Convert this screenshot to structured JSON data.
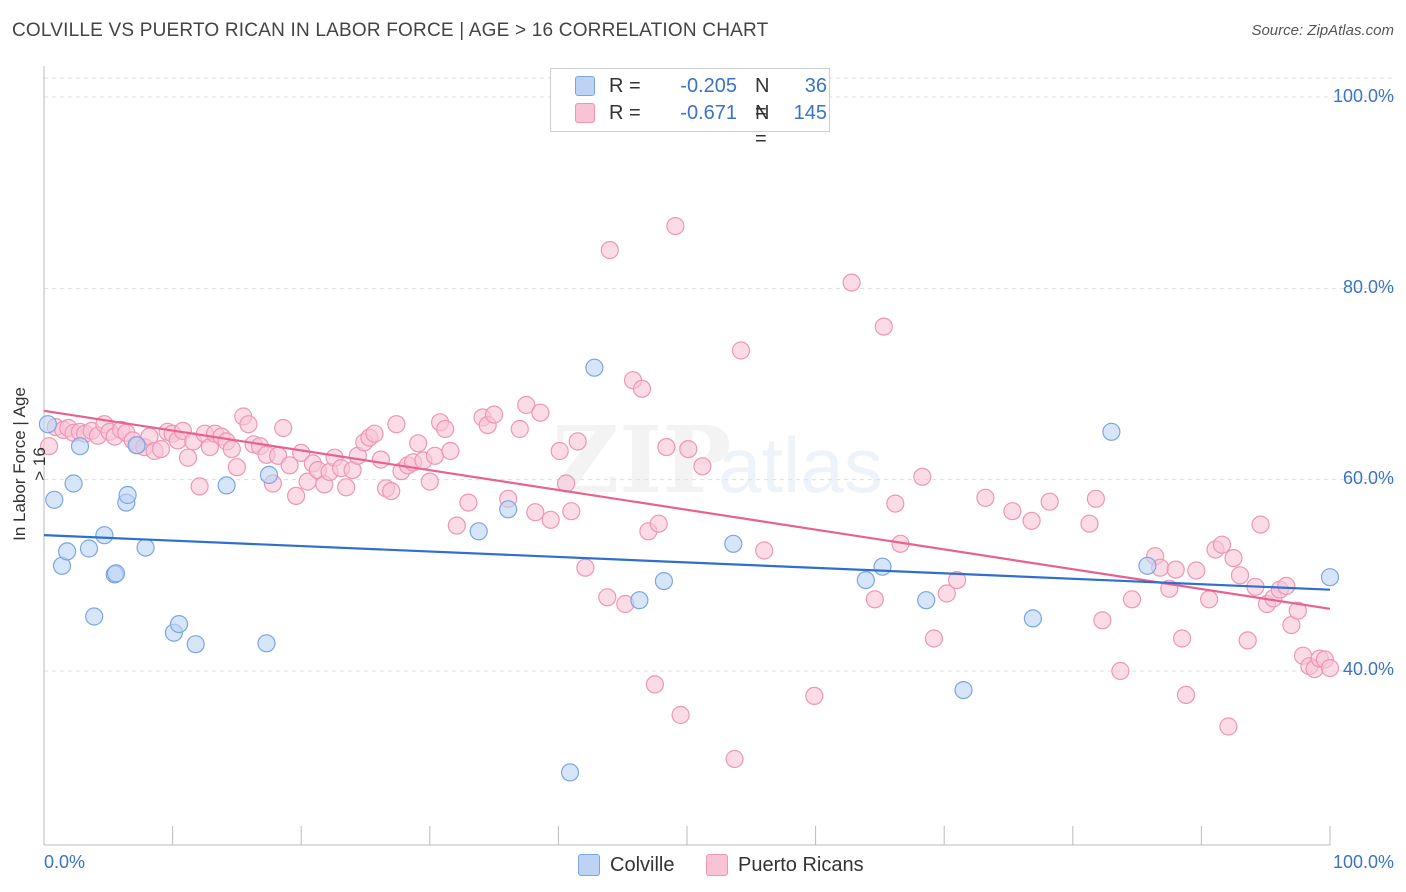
{
  "header": {
    "title": "COLVILLE VS PUERTO RICAN IN LABOR FORCE | AGE > 16 CORRELATION CHART",
    "source": "Source: ZipAtlas.com"
  },
  "legend": {
    "colville": {
      "r_label": "R =",
      "r_value": "-0.205",
      "n_label": "N =",
      "n_value": "36"
    },
    "puerto": {
      "r_label": "R =",
      "r_value": "-0.671",
      "n_label": "N =",
      "n_value": "145"
    }
  },
  "bottom_legend": {
    "colville": "Colville",
    "puerto": "Puerto Ricans"
  },
  "colors": {
    "colville_fill": "#bcd3f5",
    "colville_stroke": "#7aa6e6",
    "colville_line": "#2f6fcf",
    "puerto_fill": "#f8c4d5",
    "puerto_stroke": "#ee96b3",
    "puerto_line": "#e8628f",
    "axis_text": "#3a73c8",
    "grid": "#dddddd"
  },
  "chart_data": {
    "type": "scatter",
    "title": "COLVILLE VS PUERTO RICAN IN LABOR FORCE | AGE > 16 CORRELATION CHART",
    "xlabel": "",
    "ylabel": "In Labor Force | Age > 16",
    "x_tick_labels": [
      "0.0%",
      "100.0%"
    ],
    "y_tick_labels": [
      "100.0%",
      "80.0%",
      "60.0%",
      "40.0%"
    ],
    "xlim": [
      0,
      100
    ],
    "ylim": [
      21,
      102
    ],
    "grid": true,
    "legend_position": "top-center",
    "series": [
      {
        "name": "Colville",
        "r": -0.205,
        "n": 36,
        "trend": {
          "x": [
            0,
            100
          ],
          "y": [
            54.2,
            48.5
          ]
        },
        "points": [
          [
            0.3,
            65.8
          ],
          [
            0.8,
            57.9
          ],
          [
            1.4,
            51.0
          ],
          [
            1.8,
            52.5
          ],
          [
            2.3,
            59.6
          ],
          [
            2.8,
            63.5
          ],
          [
            3.5,
            52.8
          ],
          [
            3.9,
            45.7
          ],
          [
            4.7,
            54.2
          ],
          [
            5.5,
            50.1
          ],
          [
            5.6,
            50.2
          ],
          [
            6.4,
            57.6
          ],
          [
            6.5,
            58.4
          ],
          [
            7.2,
            63.6
          ],
          [
            7.9,
            52.9
          ],
          [
            10.1,
            44.0
          ],
          [
            10.5,
            44.9
          ],
          [
            11.8,
            42.8
          ],
          [
            14.2,
            59.4
          ],
          [
            17.3,
            42.9
          ],
          [
            17.5,
            60.5
          ],
          [
            33.8,
            54.6
          ],
          [
            36.1,
            56.9
          ],
          [
            40.9,
            29.4
          ],
          [
            42.8,
            71.7
          ],
          [
            46.3,
            47.4
          ],
          [
            48.2,
            49.4
          ],
          [
            53.6,
            53.3
          ],
          [
            63.9,
            49.5
          ],
          [
            65.2,
            50.9
          ],
          [
            68.6,
            47.4
          ],
          [
            71.5,
            38.0
          ],
          [
            76.9,
            45.5
          ],
          [
            83.0,
            65.0
          ],
          [
            85.8,
            51.0
          ],
          [
            100.0,
            49.8
          ]
        ]
      },
      {
        "name": "Puerto Ricans",
        "r": -0.671,
        "n": 145,
        "trend": {
          "x": [
            0,
            100
          ],
          "y": [
            67.2,
            46.5
          ]
        },
        "points": [
          [
            0.4,
            63.5
          ],
          [
            0.9,
            65.5
          ],
          [
            1.5,
            65.2
          ],
          [
            1.9,
            65.4
          ],
          [
            2.3,
            64.9
          ],
          [
            2.8,
            65.0
          ],
          [
            3.2,
            64.8
          ],
          [
            3.7,
            65.1
          ],
          [
            4.2,
            64.6
          ],
          [
            4.7,
            65.8
          ],
          [
            5.1,
            65.0
          ],
          [
            5.5,
            64.5
          ],
          [
            6.0,
            65.2
          ],
          [
            6.4,
            64.9
          ],
          [
            6.9,
            64.1
          ],
          [
            7.3,
            63.6
          ],
          [
            7.8,
            63.4
          ],
          [
            8.2,
            64.5
          ],
          [
            8.6,
            63.0
          ],
          [
            9.1,
            63.2
          ],
          [
            9.6,
            65.0
          ],
          [
            10.0,
            64.8
          ],
          [
            10.4,
            64.1
          ],
          [
            10.8,
            65.1
          ],
          [
            11.2,
            62.3
          ],
          [
            11.6,
            64.0
          ],
          [
            12.1,
            59.3
          ],
          [
            12.5,
            64.8
          ],
          [
            12.9,
            63.4
          ],
          [
            13.3,
            64.8
          ],
          [
            13.8,
            64.5
          ],
          [
            14.2,
            64.0
          ],
          [
            14.6,
            63.2
          ],
          [
            15.0,
            61.3
          ],
          [
            15.5,
            66.6
          ],
          [
            15.9,
            65.8
          ],
          [
            16.3,
            63.7
          ],
          [
            16.8,
            63.5
          ],
          [
            17.3,
            62.6
          ],
          [
            17.8,
            59.6
          ],
          [
            18.2,
            62.5
          ],
          [
            18.6,
            65.4
          ],
          [
            19.1,
            61.5
          ],
          [
            19.6,
            58.3
          ],
          [
            20.0,
            62.8
          ],
          [
            20.5,
            59.8
          ],
          [
            20.9,
            61.7
          ],
          [
            21.3,
            61.0
          ],
          [
            21.8,
            59.5
          ],
          [
            22.2,
            60.8
          ],
          [
            22.6,
            62.3
          ],
          [
            23.1,
            61.2
          ],
          [
            23.5,
            59.2
          ],
          [
            24.0,
            61.0
          ],
          [
            24.4,
            62.5
          ],
          [
            24.9,
            63.9
          ],
          [
            25.3,
            64.4
          ],
          [
            25.7,
            64.8
          ],
          [
            26.2,
            62.1
          ],
          [
            26.6,
            59.1
          ],
          [
            27.0,
            58.8
          ],
          [
            27.4,
            65.8
          ],
          [
            27.8,
            60.9
          ],
          [
            28.3,
            61.5
          ],
          [
            28.7,
            61.8
          ],
          [
            29.1,
            63.8
          ],
          [
            29.5,
            62.0
          ],
          [
            30.0,
            59.8
          ],
          [
            30.4,
            62.5
          ],
          [
            30.8,
            66.0
          ],
          [
            31.2,
            65.3
          ],
          [
            31.6,
            63.0
          ],
          [
            32.1,
            55.2
          ],
          [
            33.0,
            57.6
          ],
          [
            34.1,
            66.5
          ],
          [
            34.5,
            65.7
          ],
          [
            35.0,
            66.8
          ],
          [
            36.1,
            58.0
          ],
          [
            37.0,
            65.3
          ],
          [
            37.5,
            67.8
          ],
          [
            38.2,
            56.6
          ],
          [
            38.6,
            67.0
          ],
          [
            39.4,
            55.8
          ],
          [
            40.1,
            63.0
          ],
          [
            40.6,
            59.6
          ],
          [
            41.0,
            56.7
          ],
          [
            41.5,
            64.0
          ],
          [
            42.1,
            50.8
          ],
          [
            43.8,
            47.7
          ],
          [
            44.0,
            84.0
          ],
          [
            45.2,
            47.0
          ],
          [
            45.8,
            70.4
          ],
          [
            46.5,
            69.5
          ],
          [
            47.0,
            54.6
          ],
          [
            47.5,
            38.6
          ],
          [
            47.8,
            55.4
          ],
          [
            48.4,
            63.4
          ],
          [
            49.1,
            86.5
          ],
          [
            49.5,
            35.4
          ],
          [
            50.1,
            63.2
          ],
          [
            51.2,
            61.4
          ],
          [
            53.7,
            30.8
          ],
          [
            54.2,
            73.5
          ],
          [
            56.0,
            52.6
          ],
          [
            59.9,
            37.4
          ],
          [
            62.8,
            80.6
          ],
          [
            64.6,
            47.5
          ],
          [
            65.3,
            76.0
          ],
          [
            66.2,
            57.5
          ],
          [
            66.6,
            53.3
          ],
          [
            68.3,
            60.3
          ],
          [
            69.2,
            43.4
          ],
          [
            70.2,
            48.1
          ],
          [
            71.0,
            49.5
          ],
          [
            73.2,
            58.1
          ],
          [
            75.3,
            56.7
          ],
          [
            76.8,
            55.7
          ],
          [
            78.2,
            57.7
          ],
          [
            81.3,
            55.4
          ],
          [
            81.8,
            58.0
          ],
          [
            82.3,
            45.3
          ],
          [
            83.7,
            40.0
          ],
          [
            84.6,
            47.5
          ],
          [
            86.4,
            52.0
          ],
          [
            86.8,
            50.8
          ],
          [
            87.5,
            48.6
          ],
          [
            88.0,
            50.6
          ],
          [
            88.5,
            43.4
          ],
          [
            88.8,
            37.5
          ],
          [
            89.6,
            50.5
          ],
          [
            90.6,
            47.5
          ],
          [
            91.1,
            52.7
          ],
          [
            91.6,
            53.2
          ],
          [
            92.1,
            34.2
          ],
          [
            92.5,
            51.8
          ],
          [
            93.0,
            50.0
          ],
          [
            93.6,
            43.2
          ],
          [
            94.2,
            48.8
          ],
          [
            94.6,
            55.3
          ],
          [
            95.1,
            47.0
          ],
          [
            95.6,
            47.6
          ],
          [
            96.1,
            48.5
          ],
          [
            96.6,
            48.9
          ],
          [
            97.0,
            44.8
          ],
          [
            97.5,
            46.3
          ],
          [
            97.9,
            41.6
          ],
          [
            98.4,
            40.5
          ],
          [
            98.8,
            40.2
          ],
          [
            99.2,
            41.3
          ],
          [
            99.6,
            41.2
          ],
          [
            100.0,
            40.3
          ]
        ]
      }
    ]
  }
}
